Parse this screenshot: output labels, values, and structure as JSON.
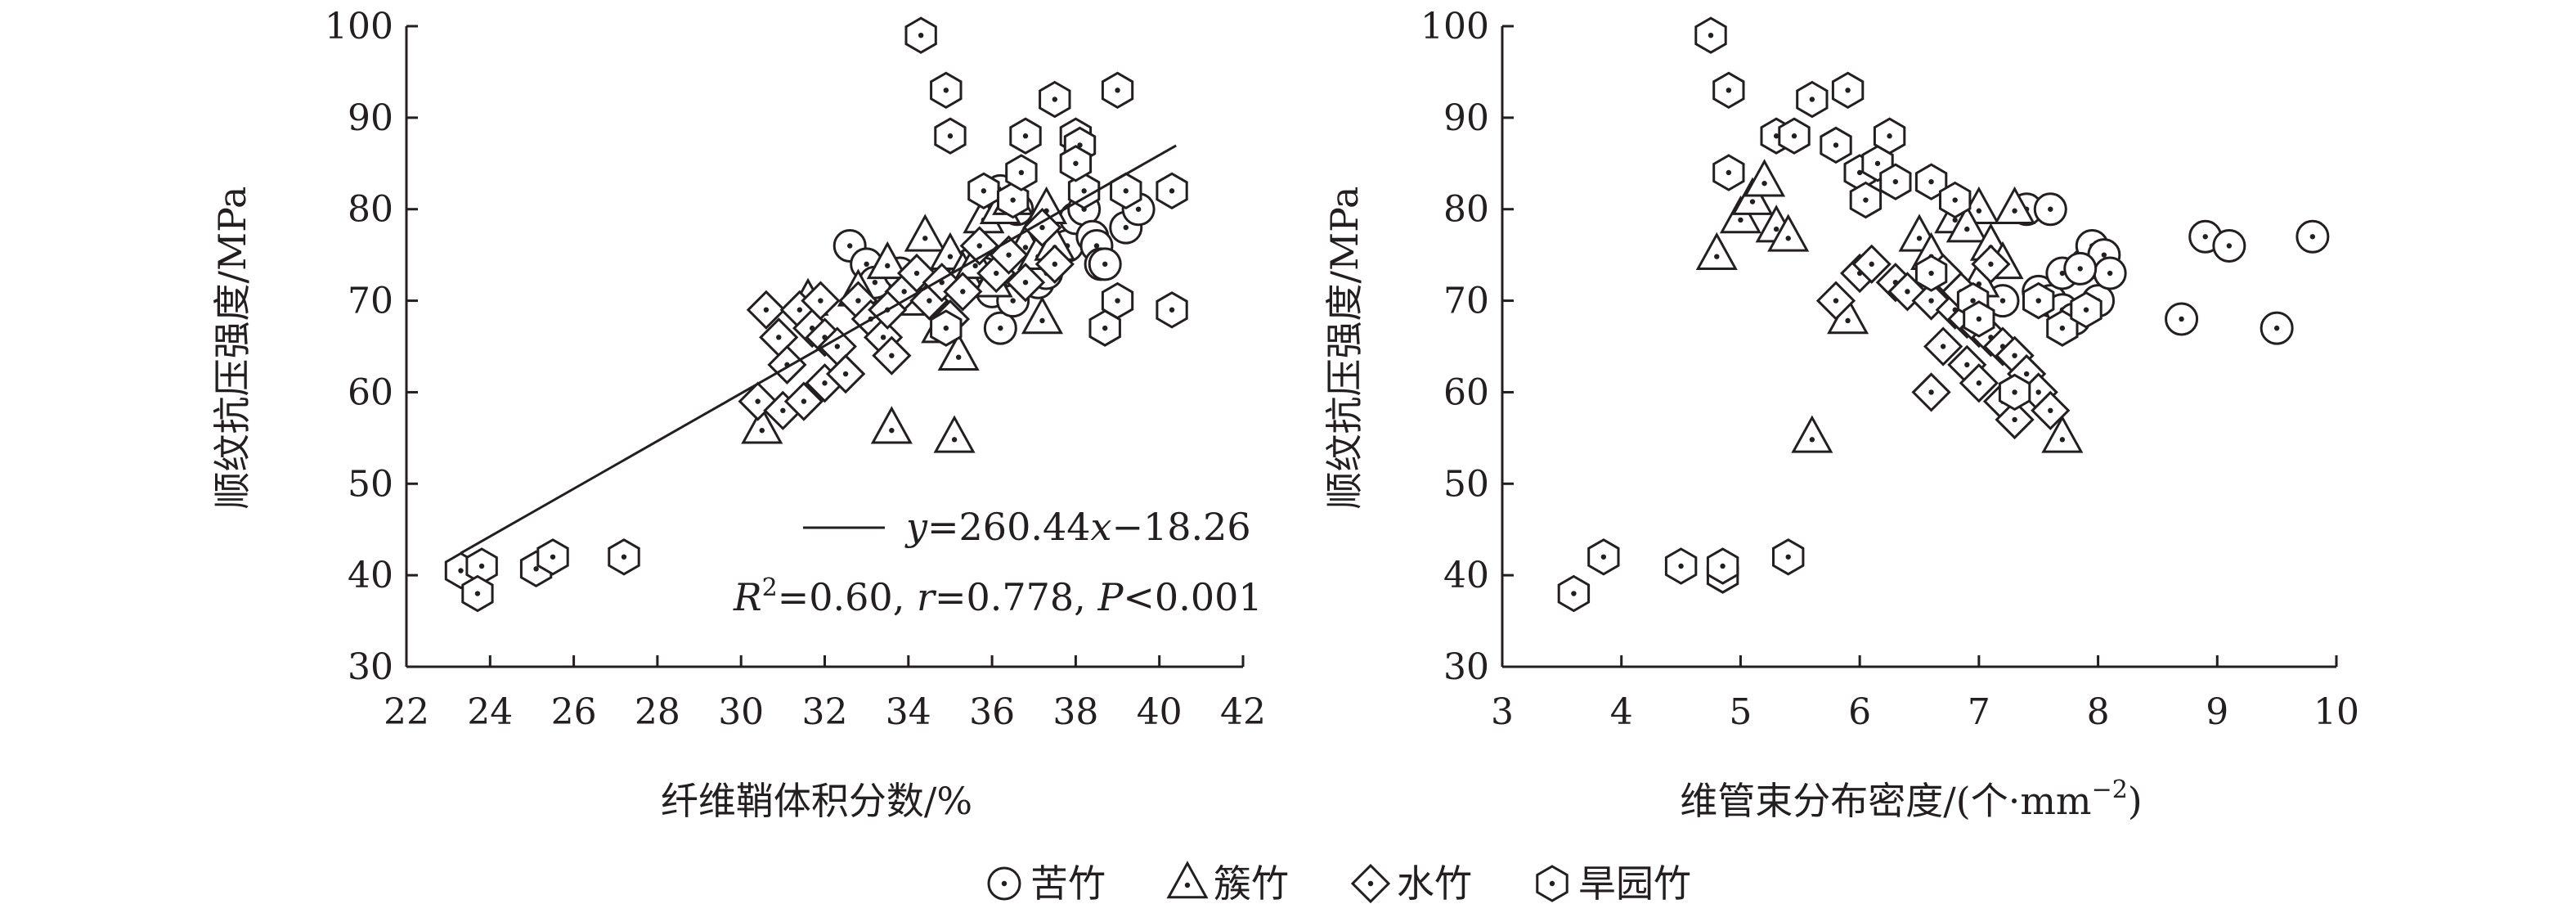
{
  "chart_data": [
    {
      "type": "scatter",
      "title": "",
      "xlabel": "纤维鞘体积分数/%",
      "ylabel": "顺纹抗压强度/MPa",
      "xlim": [
        22,
        42
      ],
      "ylim": [
        30,
        100
      ],
      "xticks": [
        "22",
        "24",
        "26",
        "28",
        "30",
        "32",
        "34",
        "36",
        "38",
        "40",
        "42"
      ],
      "yticks": [
        "30",
        "40",
        "50",
        "60",
        "70",
        "80",
        "90",
        "100"
      ],
      "grid": false,
      "regression": {
        "label_y": "y",
        "label_eq": "=260.44",
        "label_x": "x",
        "label_tail": "−18.26",
        "slope": 2.6044,
        "intercept": -18.26,
        "x_start": 23.3,
        "x_end": 40.4,
        "r2_label": "R",
        "r2_sup": "2",
        "r2_value": "=0.60, ",
        "r_label": "r",
        "r_value": "=0.778, ",
        "p_label": "P",
        "p_value": "<0.001"
      },
      "series": [
        {
          "name": "苦竹",
          "marker": "circle-dot",
          "points": [
            [
              32.6,
              76
            ],
            [
              33.0,
              74
            ],
            [
              33.2,
              72
            ],
            [
              33.8,
              73
            ],
            [
              34.5,
              71
            ],
            [
              35.2,
              72
            ],
            [
              35.5,
              74
            ],
            [
              35.8,
              73
            ],
            [
              36.0,
              71
            ],
            [
              36.2,
              67
            ],
            [
              36.5,
              70
            ],
            [
              36.8,
              74
            ],
            [
              37.1,
              72
            ],
            [
              37.3,
              73
            ],
            [
              37.5,
              75
            ],
            [
              37.8,
              76
            ],
            [
              38.0,
              79
            ],
            [
              38.2,
              80
            ],
            [
              38.4,
              77
            ],
            [
              38.5,
              76
            ],
            [
              38.6,
              74
            ],
            [
              38.7,
              74
            ],
            [
              39.2,
              78
            ],
            [
              39.5,
              80
            ],
            [
              36.2,
              82
            ],
            [
              36.6,
              80
            ]
          ]
        },
        {
          "name": "簇竹",
          "marker": "triangle",
          "points": [
            [
              30.5,
              56
            ],
            [
              33.6,
              56
            ],
            [
              35.1,
              55
            ],
            [
              34.4,
              77
            ],
            [
              35.0,
              75
            ],
            [
              35.3,
              73
            ],
            [
              35.6,
              74
            ],
            [
              35.8,
              79
            ],
            [
              36.2,
              80
            ],
            [
              36.5,
              81
            ],
            [
              36.8,
              76
            ],
            [
              37.1,
              75
            ],
            [
              37.3,
              80
            ],
            [
              37.5,
              76
            ],
            [
              37.2,
              68
            ],
            [
              34.8,
              67
            ],
            [
              34.2,
              70
            ],
            [
              33.5,
              74
            ],
            [
              35.2,
              64
            ],
            [
              32.8,
              71
            ],
            [
              31.6,
              70
            ],
            [
              36.0,
              72
            ]
          ]
        },
        {
          "name": "水竹",
          "marker": "diamond",
          "points": [
            [
              30.6,
              69
            ],
            [
              30.9,
              66
            ],
            [
              31.1,
              63
            ],
            [
              31.4,
              69
            ],
            [
              31.7,
              67
            ],
            [
              31.9,
              70
            ],
            [
              32.0,
              66
            ],
            [
              32.3,
              65
            ],
            [
              32.5,
              62
            ],
            [
              32.8,
              70
            ],
            [
              33.1,
              68
            ],
            [
              33.4,
              66
            ],
            [
              33.6,
              64
            ],
            [
              33.9,
              71
            ],
            [
              34.2,
              73
            ],
            [
              34.5,
              70
            ],
            [
              34.8,
              72
            ],
            [
              35.0,
              68
            ],
            [
              35.3,
              71
            ],
            [
              35.7,
              76
            ],
            [
              36.1,
              73
            ],
            [
              36.4,
              75
            ],
            [
              36.8,
              72
            ],
            [
              37.2,
              78
            ],
            [
              37.5,
              74
            ],
            [
              30.4,
              59
            ],
            [
              31.0,
              58
            ],
            [
              31.5,
              59
            ],
            [
              32.0,
              61
            ],
            [
              32.5,
              62
            ],
            [
              33.5,
              69
            ]
          ]
        },
        {
          "name": "旱园竹",
          "marker": "hexagon",
          "points": [
            [
              23.3,
              40.5
            ],
            [
              23.8,
              41
            ],
            [
              23.7,
              38
            ],
            [
              25.1,
              40.7
            ],
            [
              25.5,
              42
            ],
            [
              27.2,
              42
            ],
            [
              34.3,
              99
            ],
            [
              34.9,
              93
            ],
            [
              35.0,
              88
            ],
            [
              35.8,
              82
            ],
            [
              36.5,
              81
            ],
            [
              36.8,
              88
            ],
            [
              37.5,
              92
            ],
            [
              38.0,
              88
            ],
            [
              38.1,
              87
            ],
            [
              38.2,
              82
            ],
            [
              38.0,
              85
            ],
            [
              38.7,
              67
            ],
            [
              39.0,
              70
            ],
            [
              39.0,
              93
            ],
            [
              39.2,
              82
            ],
            [
              40.3,
              82
            ],
            [
              40.3,
              69
            ],
            [
              36.7,
              84
            ],
            [
              34.9,
              67
            ]
          ]
        }
      ]
    },
    {
      "type": "scatter",
      "title": "",
      "xlabel": "维管束分布密度/(个·mm",
      "xlabel_sup": "−2",
      "xlabel_tail": ")",
      "ylabel": "顺纹抗压强度/MPa",
      "xlim": [
        3,
        10
      ],
      "ylim": [
        30,
        100
      ],
      "xticks": [
        "3",
        "4",
        "5",
        "6",
        "7",
        "8",
        "9",
        "10"
      ],
      "yticks": [
        "30",
        "40",
        "50",
        "60",
        "70",
        "80",
        "90",
        "100"
      ],
      "grid": false,
      "series": [
        {
          "name": "苦竹",
          "marker": "circle-dot",
          "points": [
            [
              7.2,
              70
            ],
            [
              7.5,
              71
            ],
            [
              7.6,
              70
            ],
            [
              7.7,
              69
            ],
            [
              7.8,
              68
            ],
            [
              7.9,
              74
            ],
            [
              7.95,
              76
            ],
            [
              8.0,
              70
            ],
            [
              8.05,
              75
            ],
            [
              8.1,
              73
            ],
            [
              7.7,
              73
            ],
            [
              7.4,
              80
            ],
            [
              7.6,
              80
            ],
            [
              8.7,
              68
            ],
            [
              8.9,
              77
            ],
            [
              9.1,
              76
            ],
            [
              9.5,
              67
            ],
            [
              9.8,
              77
            ],
            [
              7.85,
              73.5
            ]
          ]
        },
        {
          "name": "簇竹",
          "marker": "triangle",
          "points": [
            [
              4.8,
              75
            ],
            [
              5.0,
              79
            ],
            [
              5.1,
              81
            ],
            [
              5.2,
              83
            ],
            [
              5.3,
              78
            ],
            [
              5.4,
              77
            ],
            [
              5.6,
              55
            ],
            [
              5.9,
              68
            ],
            [
              6.5,
              77
            ],
            [
              6.8,
              79
            ],
            [
              7.0,
              80
            ],
            [
              7.3,
              80
            ],
            [
              6.9,
              78
            ],
            [
              7.1,
              76
            ],
            [
              7.2,
              74
            ],
            [
              7.0,
              72
            ],
            [
              7.7,
              55
            ],
            [
              6.7,
              72
            ],
            [
              6.6,
              75
            ]
          ]
        },
        {
          "name": "水竹",
          "marker": "diamond",
          "points": [
            [
              5.8,
              70
            ],
            [
              6.0,
              73
            ],
            [
              6.1,
              74
            ],
            [
              6.3,
              72
            ],
            [
              6.4,
              71
            ],
            [
              6.6,
              70
            ],
            [
              6.7,
              73
            ],
            [
              6.8,
              69
            ],
            [
              6.9,
              68
            ],
            [
              7.0,
              67
            ],
            [
              7.1,
              66
            ],
            [
              7.2,
              65
            ],
            [
              7.3,
              64
            ],
            [
              7.4,
              62
            ],
            [
              7.5,
              60
            ],
            [
              7.6,
              58
            ],
            [
              6.6,
              60
            ],
            [
              6.7,
              65
            ],
            [
              6.9,
              63
            ],
            [
              7.0,
              61
            ],
            [
              7.2,
              59
            ],
            [
              7.3,
              57
            ],
            [
              7.1,
              74
            ],
            [
              6.85,
              71
            ]
          ]
        },
        {
          "name": "旱园竹",
          "marker": "hexagon",
          "points": [
            [
              3.6,
              38
            ],
            [
              3.85,
              42
            ],
            [
              4.5,
              41
            ],
            [
              4.85,
              40
            ],
            [
              4.85,
              41
            ],
            [
              5.4,
              42
            ],
            [
              4.75,
              99
            ],
            [
              4.9,
              93
            ],
            [
              4.9,
              84
            ],
            [
              5.3,
              88
            ],
            [
              5.45,
              88
            ],
            [
              5.6,
              92
            ],
            [
              5.8,
              87
            ],
            [
              5.9,
              93
            ],
            [
              6.0,
              84
            ],
            [
              6.05,
              81
            ],
            [
              6.15,
              85
            ],
            [
              6.25,
              88
            ],
            [
              6.3,
              83
            ],
            [
              6.6,
              83
            ],
            [
              6.8,
              81
            ],
            [
              6.6,
              73
            ],
            [
              6.95,
              70
            ],
            [
              7.0,
              68
            ],
            [
              7.5,
              70
            ],
            [
              7.7,
              67
            ],
            [
              7.9,
              69
            ],
            [
              7.3,
              60
            ]
          ]
        }
      ]
    }
  ],
  "legend": {
    "placement": "bottom-center",
    "items": [
      {
        "marker": "circle-dot",
        "label": "苦竹"
      },
      {
        "marker": "triangle",
        "label": "簇竹"
      },
      {
        "marker": "diamond",
        "label": "水竹"
      },
      {
        "marker": "hexagon",
        "label": "旱园竹"
      }
    ]
  }
}
